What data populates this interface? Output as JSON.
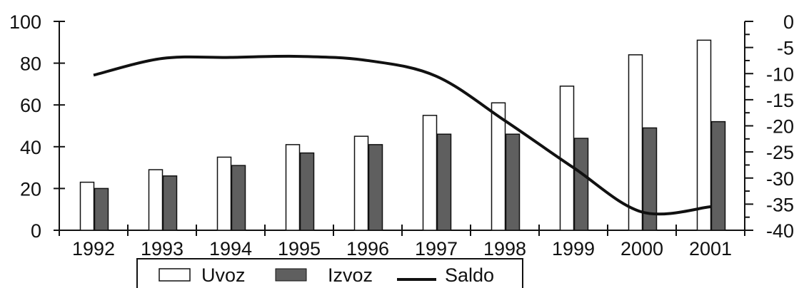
{
  "chart_data": {
    "type": "bar",
    "categories": [
      "1992",
      "1993",
      "1994",
      "1995",
      "1996",
      "1997",
      "1998",
      "1999",
      "2000",
      "2001"
    ],
    "series": [
      {
        "name": "Uvoz",
        "kind": "bar",
        "axis": "left",
        "color": "#ffffff",
        "values": [
          23,
          29,
          35,
          41,
          45,
          55,
          61,
          69,
          84,
          91
        ]
      },
      {
        "name": "Izvoz",
        "kind": "bar",
        "axis": "left",
        "color": "#5f5f5f",
        "values": [
          20,
          26,
          31,
          37,
          41,
          46,
          46,
          44,
          49,
          52
        ]
      },
      {
        "name": "Saldo",
        "kind": "line",
        "axis": "right",
        "color": "#111111",
        "values": [
          -10.3,
          -7.1,
          -6.9,
          -6.7,
          -7.5,
          -10.5,
          -19,
          -28,
          -36.5,
          -35.5
        ]
      }
    ],
    "ylim_left": [
      0,
      100
    ],
    "yticks_left": [
      0,
      20,
      40,
      60,
      80,
      100
    ],
    "ylim_right": [
      -40,
      0
    ],
    "yticks_right": [
      0,
      -5,
      -10,
      -15,
      -20,
      -25,
      -30,
      -35,
      -40
    ],
    "grid": false,
    "legend": "bottom-center"
  }
}
